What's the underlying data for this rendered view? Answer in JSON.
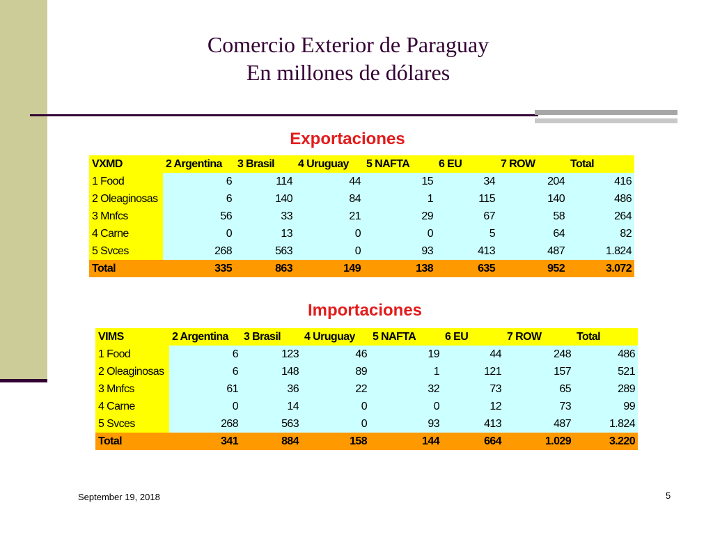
{
  "title": {
    "line1": "Comercio Exterior de Paraguay",
    "line2": "En millones de dólares"
  },
  "exports": {
    "heading": "Exportaciones",
    "columns": [
      "VXMD",
      "2 Argentina",
      "3 Brasil",
      "4 Uruguay",
      "5 NAFTA",
      "6 EU",
      "7 ROW",
      "Total"
    ],
    "rows": [
      [
        "1 Food",
        "6",
        "114",
        "44",
        "15",
        "34",
        "204",
        "416"
      ],
      [
        "2 Oleaginosas",
        "6",
        "140",
        "84",
        "1",
        "115",
        "140",
        "486"
      ],
      [
        "3 Mnfcs",
        "56",
        "33",
        "21",
        "29",
        "67",
        "58",
        "264"
      ],
      [
        "4 Carne",
        "0",
        "13",
        "0",
        "0",
        "5",
        "64",
        "82"
      ],
      [
        "5 Svces",
        "268",
        "563",
        "0",
        "93",
        "413",
        "487",
        "1.824"
      ]
    ],
    "total": [
      "Total",
      "335",
      "863",
      "149",
      "138",
      "635",
      "952",
      "3.072"
    ]
  },
  "imports": {
    "heading": "Importaciones",
    "columns": [
      "VIMS",
      "2 Argentina",
      "3 Brasil",
      "4 Uruguay",
      "5 NAFTA",
      "6 EU",
      "7 ROW",
      "Total"
    ],
    "rows": [
      [
        "1 Food",
        "6",
        "123",
        "46",
        "19",
        "44",
        "248",
        "486"
      ],
      [
        "2 Oleaginosas",
        "6",
        "148",
        "89",
        "1",
        "121",
        "157",
        "521"
      ],
      [
        "3 Mnfcs",
        "61",
        "36",
        "22",
        "32",
        "73",
        "65",
        "289"
      ],
      [
        "4 Carne",
        "0",
        "14",
        "0",
        "0",
        "12",
        "73",
        "99"
      ],
      [
        "5 Svces",
        "268",
        "563",
        "0",
        "93",
        "413",
        "487",
        "1.824"
      ]
    ],
    "total": [
      "Total",
      "341",
      "884",
      "158",
      "144",
      "664",
      "1.029",
      "3.220"
    ]
  },
  "footer": {
    "date": "September 19, 2018",
    "page": "5"
  }
}
